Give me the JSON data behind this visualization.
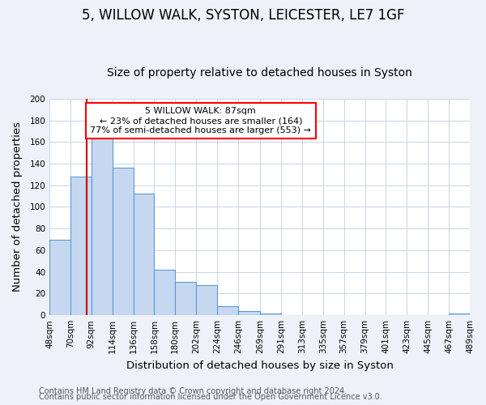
{
  "title": "5, WILLOW WALK, SYSTON, LEICESTER, LE7 1GF",
  "subtitle": "Size of property relative to detached houses in Syston",
  "xlabel": "Distribution of detached houses by size in Syston",
  "ylabel": "Number of detached properties",
  "bar_color": "#c5d8f0",
  "bar_edge_color": "#5b9bd5",
  "bin_edges": [
    48,
    70,
    92,
    114,
    136,
    158,
    180,
    202,
    224,
    246,
    269,
    291,
    313,
    335,
    357,
    379,
    401,
    423,
    445,
    467,
    489
  ],
  "bin_labels": [
    "48sqm",
    "70sqm",
    "92sqm",
    "114sqm",
    "136sqm",
    "158sqm",
    "180sqm",
    "202sqm",
    "224sqm",
    "246sqm",
    "269sqm",
    "291sqm",
    "313sqm",
    "335sqm",
    "357sqm",
    "379sqm",
    "401sqm",
    "423sqm",
    "445sqm",
    "467sqm",
    "489sqm"
  ],
  "counts": [
    70,
    128,
    163,
    136,
    112,
    42,
    31,
    28,
    8,
    4,
    2,
    0,
    0,
    0,
    0,
    0,
    0,
    0,
    0,
    2
  ],
  "ylim": [
    0,
    200
  ],
  "yticks": [
    0,
    20,
    40,
    60,
    80,
    100,
    120,
    140,
    160,
    180,
    200
  ],
  "red_line_x": 87,
  "annotation_title": "5 WILLOW WALK: 87sqm",
  "annotation_line1": "← 23% of detached houses are smaller (164)",
  "annotation_line2": "77% of semi-detached houses are larger (553) →",
  "annotation_box_color": "white",
  "annotation_box_edge_color": "red",
  "red_line_color": "#cc0000",
  "footer1": "Contains HM Land Registry data © Crown copyright and database right 2024.",
  "footer2": "Contains public sector information licensed under the Open Government Licence v3.0.",
  "background_color": "#eef2f8",
  "plot_bg_color": "white",
  "grid_color": "#c8d4e8",
  "title_fontsize": 12,
  "subtitle_fontsize": 10,
  "axis_label_fontsize": 9.5,
  "tick_fontsize": 7.5,
  "annotation_fontsize": 8,
  "footer_fontsize": 7
}
